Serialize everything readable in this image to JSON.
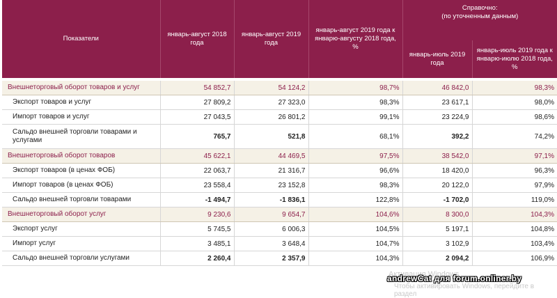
{
  "header": {
    "indicators": "Показатели",
    "col_2018": "январь-август 2018 года",
    "col_2019": "январь-август 2019 года",
    "col_ratio": "январь-август 2019 года к январю-августу 2018 года, %",
    "reference_line1": "Справочно:",
    "reference_line2": "(по уточненным данным)",
    "col_jul_2019": "январь-июль 2019 года",
    "col_jul_ratio": "январь-июль 2019 года к январю-июлю 2018 года, %"
  },
  "rows": [
    {
      "name": "Внешнеторговый оборот товаров и услуг",
      "v2018": "54 852,7",
      "v2019": "54 124,2",
      "ratio": "98,7%",
      "jul2019": "46 842,0",
      "jul_ratio": "98,3%"
    },
    {
      "name": "Экспорт товаров и услуг",
      "v2018": "27 809,2",
      "v2019": "27 323,0",
      "ratio": "98,3%",
      "jul2019": "23 617,1",
      "jul_ratio": "98,0%"
    },
    {
      "name": "Импорт товаров и услуг",
      "v2018": "27 043,5",
      "v2019": "26 801,2",
      "ratio": "99,1%",
      "jul2019": "23 224,9",
      "jul_ratio": "98,6%"
    },
    {
      "name": "Сальдо внешней торговли товарами и услугами",
      "v2018": "765,7",
      "v2019": "521,8",
      "ratio": "68,1%",
      "jul2019": "392,2",
      "jul_ratio": "74,2%"
    },
    {
      "name": "Внешнеторговый оборот товаров",
      "v2018": "45 622,1",
      "v2019": "44 469,5",
      "ratio": "97,5%",
      "jul2019": "38 542,0",
      "jul_ratio": "97,1%"
    },
    {
      "name": "Экспорт товаров (в ценах ФОБ)",
      "v2018": "22 063,7",
      "v2019": "21 316,7",
      "ratio": "96,6%",
      "jul2019": "18 420,0",
      "jul_ratio": "96,3%"
    },
    {
      "name": "Импорт товаров (в ценах ФОБ)",
      "v2018": "23 558,4",
      "v2019": "23 152,8",
      "ratio": "98,3%",
      "jul2019": "20 122,0",
      "jul_ratio": "97,9%"
    },
    {
      "name": "Сальдо внешней торговли товарами",
      "v2018": "-1 494,7",
      "v2019": "-1 836,1",
      "ratio": "122,8%",
      "jul2019": "-1 702,0",
      "jul_ratio": "119,0%"
    },
    {
      "name": "Внешнеторговый оборот услуг",
      "v2018": "9 230,6",
      "v2019": "9 654,7",
      "ratio": "104,6%",
      "jul2019": "8 300,0",
      "jul_ratio": "104,3%"
    },
    {
      "name": "Экспорт услуг",
      "v2018": "5 745,5",
      "v2019": "6 006,3",
      "ratio": "104,5%",
      "jul2019": "5 197,1",
      "jul_ratio": "104,8%"
    },
    {
      "name": "Импорт услуг",
      "v2018": "3 485,1",
      "v2019": "3 648,4",
      "ratio": "104,7%",
      "jul2019": "3 102,9",
      "jul_ratio": "103,4%"
    },
    {
      "name": "Сальдо внешней торговли услугами",
      "v2018": "2 260,4",
      "v2019": "2 357,9",
      "ratio": "104,3%",
      "jul2019": "2 094,2",
      "jul_ratio": "106,9%"
    }
  ],
  "overlay": {
    "watermark_title": "Активация Windows",
    "watermark_text": "Чтобы активировать Windows, перейдите в раздел",
    "credit": "andrewCat для forum.onliner.by"
  }
}
